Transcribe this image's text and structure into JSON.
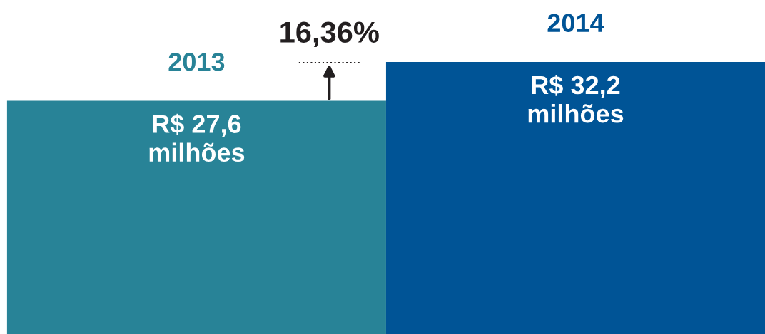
{
  "chart_data": {
    "type": "bar",
    "categories": [
      "2013",
      "2014"
    ],
    "values": [
      27.6,
      32.2
    ],
    "colors": [
      "#288397",
      "#005496"
    ],
    "value_labels": [
      "R$ 27,6\nmilhões",
      "R$ 32,2\nmilhões"
    ],
    "annotations": [
      "16,36%"
    ]
  }
}
